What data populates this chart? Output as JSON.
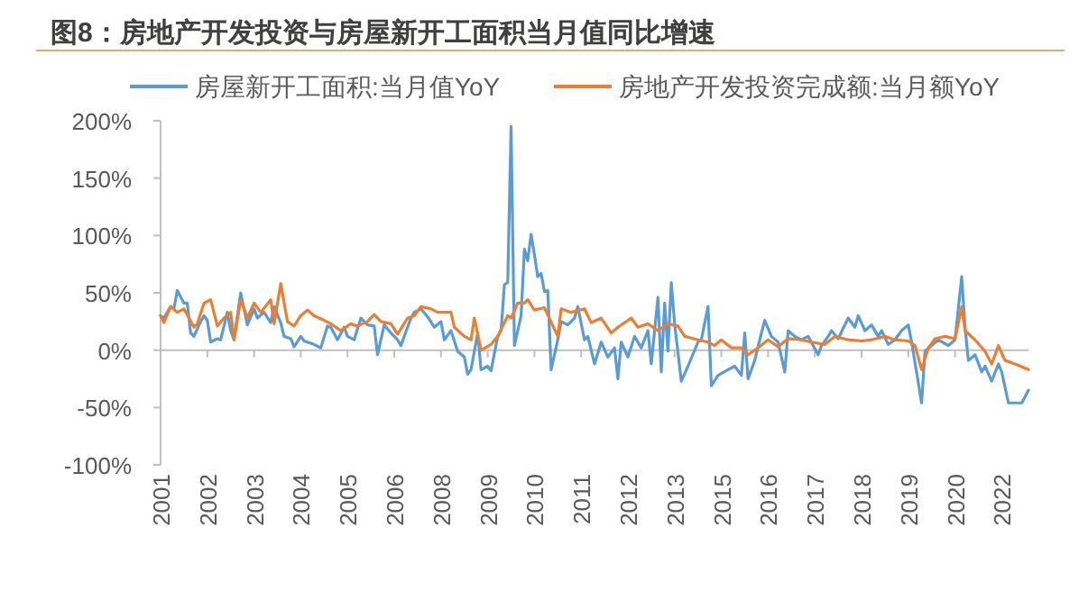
{
  "chart_data": {
    "type": "line",
    "title": "图8：房地产开发投资与房屋新开工面积当月值同比增速",
    "legend": "top",
    "line_style": "solid",
    "marker": "none",
    "xlim": [
      "2001-01",
      "2022-09"
    ],
    "xticks": [
      {
        "value": "2001-01",
        "label": "2001"
      },
      {
        "value": "2002-03",
        "label": "2002"
      },
      {
        "value": "2003-05",
        "label": "2003"
      },
      {
        "value": "2004-07",
        "label": "2004"
      },
      {
        "value": "2005-09",
        "label": "2005"
      },
      {
        "value": "2006-11",
        "label": "2006"
      },
      {
        "value": "2008-01",
        "label": "2008"
      },
      {
        "value": "2009-03",
        "label": "2009"
      },
      {
        "value": "2010-05",
        "label": "2010"
      },
      {
        "value": "2011-07",
        "label": "2011"
      },
      {
        "value": "2012-09",
        "label": "2012"
      },
      {
        "value": "2013-11",
        "label": "2013"
      },
      {
        "value": "2015-01",
        "label": "2015"
      },
      {
        "value": "2016-03",
        "label": "2016"
      },
      {
        "value": "2017-05",
        "label": "2017"
      },
      {
        "value": "2018-07",
        "label": "2018"
      },
      {
        "value": "2019-09",
        "label": "2019"
      },
      {
        "value": "2020-11",
        "label": "2020"
      },
      {
        "value": "2022-01",
        "label": "2022"
      }
    ],
    "ylim": [
      -100,
      200
    ],
    "yticks": [
      {
        "value": -100,
        "label": "-100%"
      },
      {
        "value": -50,
        "label": "-50%"
      },
      {
        "value": 0,
        "label": "0%"
      },
      {
        "value": 50,
        "label": "50%"
      },
      {
        "value": 100,
        "label": "100%"
      },
      {
        "value": 150,
        "label": "150%"
      },
      {
        "value": 200,
        "label": "200%"
      }
    ],
    "series": [
      {
        "name": "房屋新开工面积:当月值YoY",
        "color": "#5b9bd5",
        "x": [
          "2001-01",
          "2001-02",
          "2001-04",
          "2001-05",
          "2001-06",
          "2001-08",
          "2001-09",
          "2001-10",
          "2001-11",
          "2002-01",
          "2002-02",
          "2002-03",
          "2002-04",
          "2002-06",
          "2002-07",
          "2002-09",
          "2002-10",
          "2002-11",
          "2003-01",
          "2003-03",
          "2003-05",
          "2003-06",
          "2003-08",
          "2003-10",
          "2003-11",
          "2004-01",
          "2004-02",
          "2004-04",
          "2004-05",
          "2004-07",
          "2004-08",
          "2004-11",
          "2005-01",
          "2005-03",
          "2005-04",
          "2005-06",
          "2005-08",
          "2005-09",
          "2005-11",
          "2006-01",
          "2006-03",
          "2006-05",
          "2006-06",
          "2006-08",
          "2006-10",
          "2006-12",
          "2007-01",
          "2007-04",
          "2007-05",
          "2007-07",
          "2007-09",
          "2007-11",
          "2008-01",
          "2008-02",
          "2008-04",
          "2008-06",
          "2008-08",
          "2008-09",
          "2008-10",
          "2008-12",
          "2009-01",
          "2009-03",
          "2009-04",
          "2009-06",
          "2009-07",
          "2009-08",
          "2009-09",
          "2009-10",
          "2009-11",
          "2010-01",
          "2010-02",
          "2010-03",
          "2010-04",
          "2010-05",
          "2010-06",
          "2010-07",
          "2010-08",
          "2010-09",
          "2010-10",
          "2010-12",
          "2011-01",
          "2011-03",
          "2011-05",
          "2011-06",
          "2011-08",
          "2011-09",
          "2011-11",
          "2012-01",
          "2012-03",
          "2012-05",
          "2012-06",
          "2012-07",
          "2012-09",
          "2012-11",
          "2013-01",
          "2013-03",
          "2013-04",
          "2013-06",
          "2013-07",
          "2013-08",
          "2013-09",
          "2013-10",
          "2013-11",
          "2014-01",
          "2014-03",
          "2014-06",
          "2014-07",
          "2014-09",
          "2014-10",
          "2014-12",
          "2015-03",
          "2015-05",
          "2015-07",
          "2015-08",
          "2015-09",
          "2015-11",
          "2016-01",
          "2016-02",
          "2016-04",
          "2016-06",
          "2016-08",
          "2016-09",
          "2016-11",
          "2017-01",
          "2017-03",
          "2017-06",
          "2017-07",
          "2017-09",
          "2017-10",
          "2017-12",
          "2018-03",
          "2018-05",
          "2018-06",
          "2018-08",
          "2018-10",
          "2018-12",
          "2019-01",
          "2019-03",
          "2019-05",
          "2019-07",
          "2019-09",
          "2019-10",
          "2020-01",
          "2020-02",
          "2020-04",
          "2020-06",
          "2020-09",
          "2020-11",
          "2021-01",
          "2021-02",
          "2021-03",
          "2021-05",
          "2021-07",
          "2021-08",
          "2021-10",
          "2021-12",
          "2022-01",
          "2022-03",
          "2022-05",
          "2022-07",
          "2022-09"
        ],
        "values": [
          30,
          28,
          38,
          36,
          52,
          41,
          41,
          15,
          12,
          25,
          30,
          26,
          7,
          10,
          9,
          33,
          17,
          9,
          50,
          22,
          36,
          28,
          33,
          24,
          38,
          24,
          12,
          10,
          3,
          12,
          8,
          5,
          2,
          21,
          20,
          9,
          20,
          12,
          9,
          28,
          22,
          21,
          -4,
          22,
          15,
          9,
          4,
          28,
          33,
          36,
          29,
          20,
          25,
          9,
          17,
          -1,
          -6,
          -21,
          -17,
          15,
          -17,
          -14,
          -18,
          12,
          17,
          57,
          59,
          195,
          4,
          30,
          88,
          78,
          101,
          83,
          64,
          67,
          51,
          52,
          -17,
          9,
          25,
          22,
          28,
          38,
          9,
          12,
          -12,
          7,
          -6,
          2,
          -25,
          7,
          -6,
          12,
          2,
          17,
          -12,
          46,
          -19,
          41,
          -1,
          59,
          23,
          -27,
          -14,
          7,
          9,
          38,
          -31,
          -22,
          -17,
          -14,
          -22,
          15,
          -25,
          -9,
          15,
          26,
          12,
          7,
          -19,
          17,
          12,
          9,
          12,
          -4,
          4,
          12,
          17,
          10,
          28,
          20,
          30,
          17,
          22,
          12,
          17,
          5,
          9,
          17,
          22,
          7,
          -46,
          -1,
          4,
          9,
          4,
          9,
          64,
          20,
          -9,
          -4,
          -19,
          -14,
          -27,
          -12,
          -19,
          -46,
          -46,
          -46,
          -35
        ]
      },
      {
        "name": "房地产开发投资完成额:当月额YoY",
        "color": "#ed7d31",
        "x": [
          "2001-01",
          "2001-02",
          "2001-04",
          "2001-06",
          "2001-08",
          "2001-11",
          "2001-12",
          "2002-02",
          "2002-04",
          "2002-06",
          "2002-08",
          "2002-10",
          "2002-11",
          "2003-01",
          "2003-03",
          "2003-05",
          "2003-07",
          "2003-10",
          "2003-11",
          "2004-01",
          "2004-03",
          "2004-05",
          "2004-07",
          "2004-09",
          "2004-11",
          "2005-02",
          "2005-04",
          "2005-07",
          "2005-10",
          "2005-12",
          "2006-03",
          "2006-05",
          "2006-07",
          "2006-10",
          "2006-12",
          "2007-03",
          "2007-05",
          "2007-07",
          "2007-10",
          "2007-12",
          "2008-04",
          "2008-05",
          "2008-08",
          "2008-10",
          "2008-11",
          "2009-01",
          "2009-04",
          "2009-06",
          "2009-09",
          "2009-10",
          "2009-12",
          "2010-02",
          "2010-03",
          "2010-05",
          "2010-08",
          "2010-12",
          "2011-01",
          "2011-04",
          "2011-08",
          "2011-10",
          "2012-01",
          "2012-04",
          "2012-06",
          "2012-10",
          "2012-12",
          "2013-03",
          "2013-06",
          "2013-09",
          "2013-12",
          "2014-02",
          "2014-06",
          "2014-09",
          "2014-11",
          "2015-01",
          "2015-04",
          "2015-07",
          "2015-09",
          "2015-12",
          "2016-03",
          "2016-06",
          "2016-09",
          "2017-01",
          "2017-04",
          "2017-08",
          "2017-11",
          "2018-03",
          "2018-07",
          "2018-10",
          "2019-02",
          "2019-05",
          "2019-09",
          "2019-11",
          "2020-01",
          "2020-03",
          "2020-05",
          "2020-08",
          "2020-11",
          "2021-01",
          "2021-02",
          "2021-05",
          "2021-08",
          "2021-10",
          "2021-12",
          "2022-02",
          "2022-05",
          "2022-09"
        ],
        "values": [
          30,
          24,
          38,
          33,
          36,
          20,
          23,
          41,
          44,
          21,
          28,
          33,
          9,
          44,
          28,
          41,
          33,
          44,
          23,
          58,
          25,
          21,
          30,
          35,
          30,
          26,
          23,
          17,
          23,
          21,
          25,
          31,
          25,
          23,
          14,
          28,
          30,
          38,
          36,
          33,
          33,
          20,
          12,
          9,
          28,
          0,
          5,
          12,
          30,
          28,
          41,
          41,
          44,
          35,
          37,
          12,
          36,
          33,
          36,
          24,
          28,
          15,
          20,
          28,
          20,
          23,
          17,
          23,
          21,
          12,
          9,
          7,
          4,
          9,
          2,
          2,
          -4,
          2,
          9,
          3,
          10,
          9,
          7,
          5,
          12,
          9,
          8,
          9,
          12,
          9,
          8,
          4,
          -17,
          2,
          10,
          12,
          10,
          38,
          17,
          9,
          -1,
          -12,
          4,
          -9,
          -12,
          -17
        ]
      }
    ]
  }
}
